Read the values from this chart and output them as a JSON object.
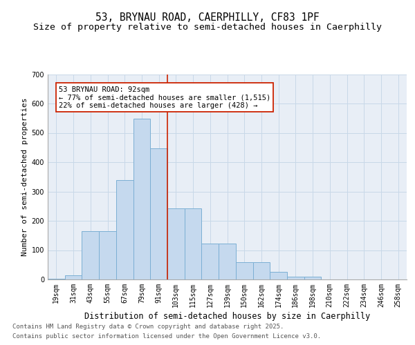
{
  "title_line1": "53, BRYNAU ROAD, CAERPHILLY, CF83 1PF",
  "title_line2": "Size of property relative to semi-detached houses in Caerphilly",
  "xlabel": "Distribution of semi-detached houses by size in Caerphilly",
  "ylabel": "Number of semi-detached properties",
  "categories": [
    "19sqm",
    "31sqm",
    "43sqm",
    "55sqm",
    "67sqm",
    "79sqm",
    "91sqm",
    "103sqm",
    "115sqm",
    "127sqm",
    "139sqm",
    "150sqm",
    "162sqm",
    "174sqm",
    "186sqm",
    "198sqm",
    "210sqm",
    "222sqm",
    "234sqm",
    "246sqm",
    "258sqm"
  ],
  "bar_heights": [
    3,
    13,
    165,
    165,
    338,
    548,
    447,
    243,
    243,
    122,
    122,
    60,
    60,
    27,
    10,
    10,
    0,
    0,
    0,
    0,
    0
  ],
  "bar_color": "#c5d9ee",
  "bar_edge_color": "#7bafd4",
  "grid_color": "#c8d8e8",
  "background_color": "#e8eef6",
  "vline_color": "#cc2200",
  "annotation_text": "53 BRYNAU ROAD: 92sqm\n← 77% of semi-detached houses are smaller (1,515)\n22% of semi-detached houses are larger (428) →",
  "annotation_box_edgecolor": "#cc2200",
  "ylim": [
    0,
    700
  ],
  "yticks": [
    0,
    100,
    200,
    300,
    400,
    500,
    600,
    700
  ],
  "footer_line1": "Contains HM Land Registry data © Crown copyright and database right 2025.",
  "footer_line2": "Contains public sector information licensed under the Open Government Licence v3.0.",
  "title_fontsize": 10.5,
  "subtitle_fontsize": 9.5,
  "ylabel_fontsize": 8,
  "xlabel_fontsize": 8.5,
  "tick_fontsize": 7,
  "footer_fontsize": 6.5,
  "annot_fontsize": 7.5,
  "vline_bar_index": 6
}
